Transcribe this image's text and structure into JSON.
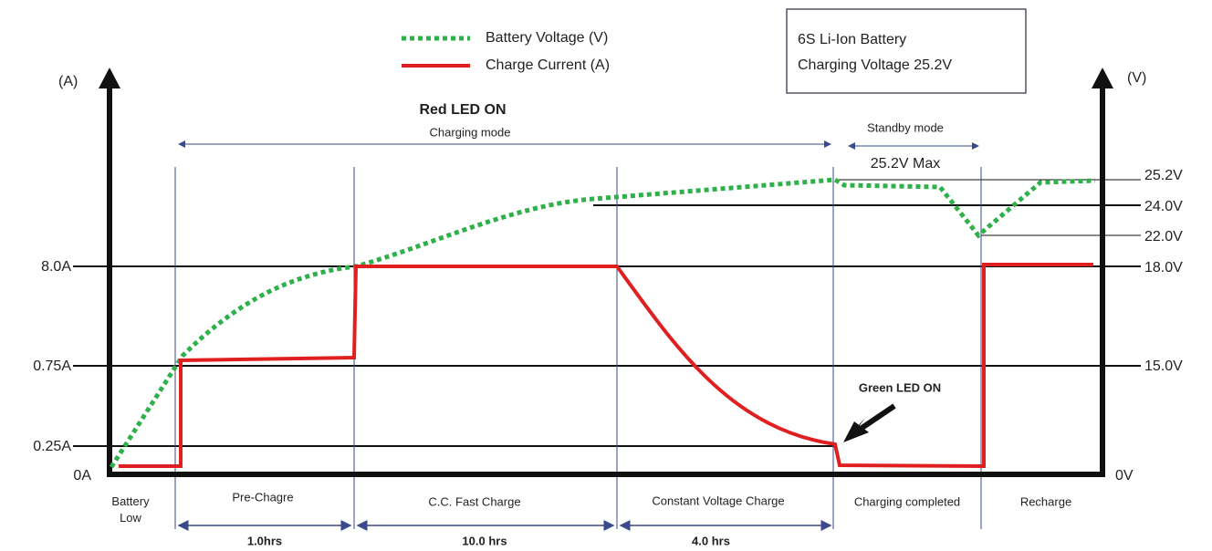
{
  "legend": {
    "voltage": "Battery Voltage (V)",
    "current": "Charge Current (A)"
  },
  "info_box": [
    "6S Li-Ion Battery",
    "Charging Voltage 25.2V"
  ],
  "axes": {
    "left_unit": "(A)",
    "right_unit": "(V)",
    "left_labels": [
      "8.0A",
      "0.75A",
      "0.25A",
      "0A"
    ],
    "right_labels": [
      "25.2V",
      "24.0V",
      "22.0V",
      "18.0V",
      "15.0V",
      "0V"
    ]
  },
  "annotations": {
    "red_led": "Red LED ON",
    "charging_mode": "Charging  mode",
    "standby_mode": "Standby mode",
    "max": "25.2V Max",
    "green_led": "Green LED ON"
  },
  "phases": [
    "Battery Low",
    "Pre-Chagre",
    "C.C. Fast Charge",
    "Constant Voltage  Charge",
    "Charging completed",
    "Recharge"
  ],
  "durations": [
    "1.0hrs",
    "10.0 hrs",
    "4.0 hrs"
  ]
}
